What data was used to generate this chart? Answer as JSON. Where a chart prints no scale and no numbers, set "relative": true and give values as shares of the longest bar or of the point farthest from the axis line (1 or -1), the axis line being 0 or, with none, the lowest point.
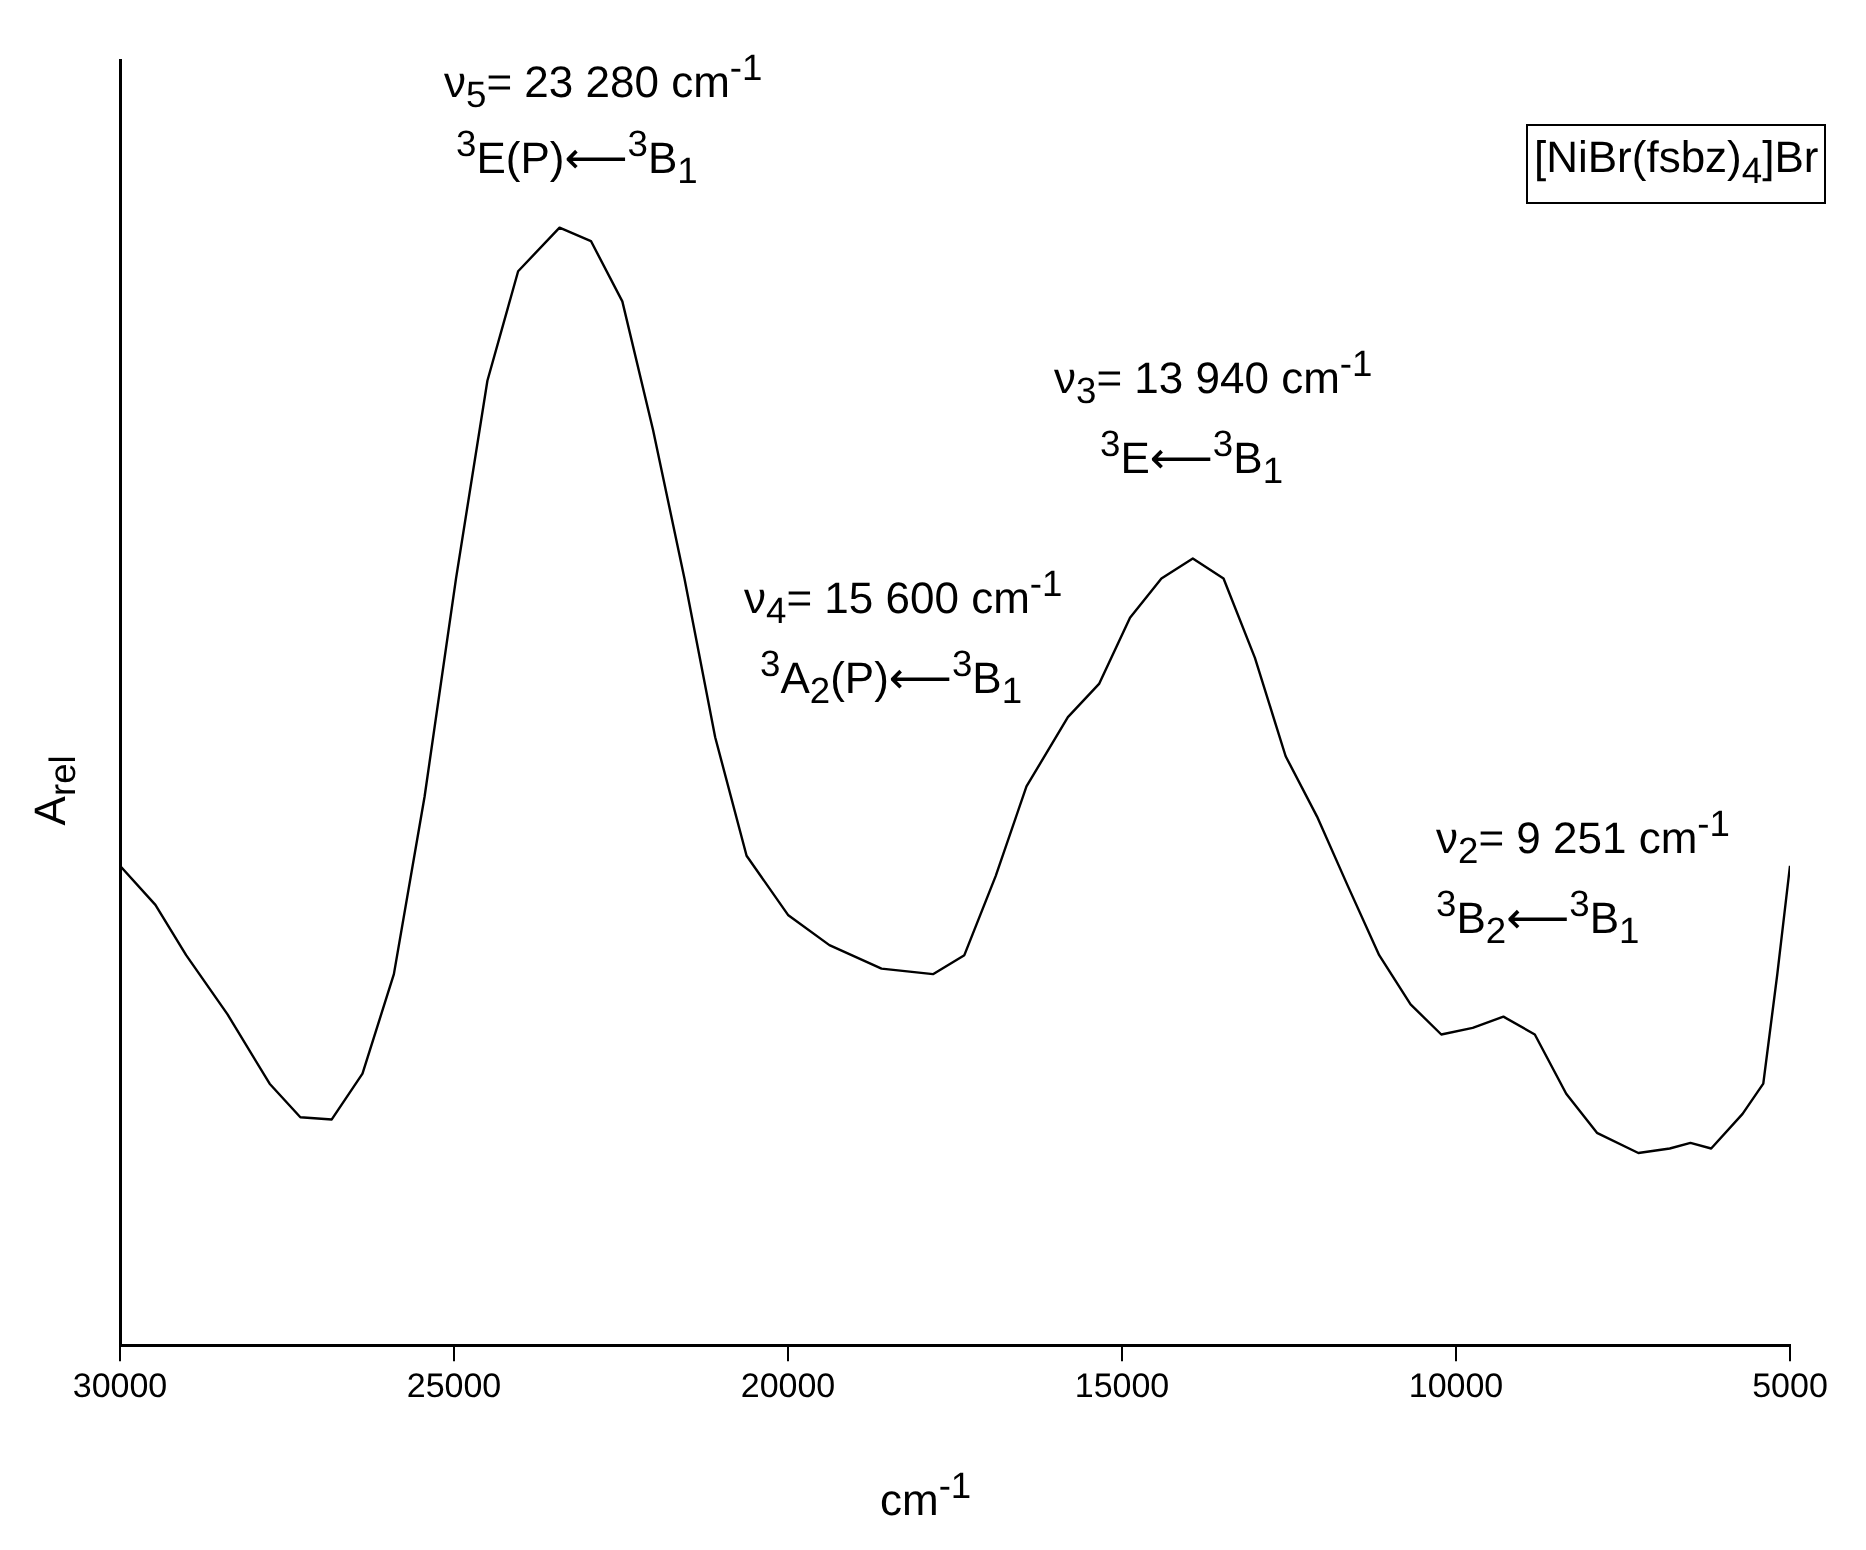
{
  "chart_data": {
    "type": "line",
    "relative": true,
    "xlabel": "cm$^{-1}$",
    "ylabel": "A$_{rel}$",
    "x": [
      30000,
      29470,
      29010,
      28390,
      27760,
      27300,
      26830,
      26370,
      25900,
      25440,
      24970,
      24500,
      24040,
      23420,
      22950,
      22480,
      22020,
      21550,
      21090,
      20620,
      20000,
      19380,
      18600,
      17830,
      17360,
      16890,
      16430,
      15810,
      15340,
      14880,
      14410,
      13940,
      13480,
      13010,
      12550,
      12080,
      11620,
      11150,
      10680,
      10220,
      9750,
      9290,
      8820,
      8350,
      7890,
      7270,
      6800,
      6490,
      6180,
      5710,
      5400,
      5190,
      5000
    ],
    "series": [
      {
        "color": "#000000",
        "values": [
          0.429,
          0.394,
          0.349,
          0.296,
          0.234,
          0.204,
          0.202,
          0.243,
          0.332,
          0.491,
          0.686,
          0.863,
          0.961,
          1.0,
          0.988,
          0.934,
          0.819,
          0.686,
          0.544,
          0.438,
          0.385,
          0.358,
          0.337,
          0.332,
          0.349,
          0.42,
          0.5,
          0.562,
          0.592,
          0.651,
          0.686,
          0.704,
          0.686,
          0.615,
          0.527,
          0.473,
          0.411,
          0.349,
          0.305,
          0.278,
          0.284,
          0.294,
          0.278,
          0.225,
          0.19,
          0.172,
          0.176,
          0.181,
          0.176,
          0.207,
          0.234,
          0.332,
          0.429
        ]
      }
    ],
    "xlim": [
      30000,
      5000
    ],
    "xticks": [
      30000,
      25000,
      20000,
      15000,
      10000,
      5000
    ],
    "grid": false,
    "legend": false,
    "line_style": "solid",
    "marker": "none",
    "annotations": [
      "ν$_{5}$= 23 280 cm$^{-1}$",
      "$^{3}$E(P)⟵$^{3}$B$_{1}$",
      "ν$_{3}$= 13 940 cm$^{-1}$",
      "$^{3}$E⟵$^{3}$B$_{1}$",
      "ν$_{4}$= 15 600 cm$^{-1}$",
      "$^{3}$A$_{2}$(P)⟵$^{3}$B$_{1}$",
      "ν$_{2}$=  9 251 cm$^{-1}$",
      "$^{3}$B$_{2}$⟵$^{3}$B$_{1}$",
      "[NiBr(fsbz)$_{4}$]Br"
    ]
  }
}
